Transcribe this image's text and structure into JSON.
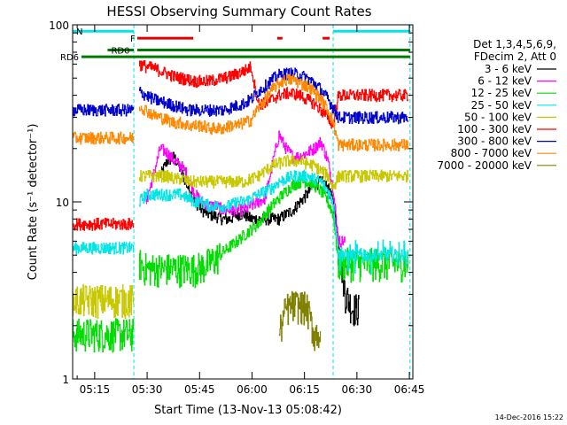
{
  "chart_data": {
    "type": "line",
    "title": "HESSI Observing Summary Count Rates",
    "xlabel": "Start Time (13-Nov-13 05:08:42)",
    "ylabel": "Count Rate (s⁻¹ detector⁻¹)",
    "ylog": true,
    "ylim": [
      1,
      100
    ],
    "xlim_minutes": [
      0,
      97.3
    ],
    "x_tick_labels": [
      "05:15",
      "05:30",
      "05:45",
      "06:00",
      "06:15",
      "06:30",
      "06:45"
    ],
    "x_tick_minutes": [
      6.3,
      21.3,
      36.3,
      51.3,
      66.3,
      81.3,
      96.3
    ],
    "y_tick_labels": [
      "1",
      "10",
      "100"
    ],
    "y_tick_values": [
      1,
      10,
      100
    ],
    "legend_header": [
      "Det 1,3,4,5,6,9,",
      "FDecim 2, Att 0"
    ],
    "legend_position": "right",
    "date_stamp": "14-Dec-2016 15:22",
    "flags": [
      {
        "label": "N",
        "color": "#00e6e6",
        "level": 92,
        "segments": [
          [
            0,
            17.5
          ],
          [
            74.5,
            96.5
          ]
        ]
      },
      {
        "label": "F",
        "color": "#e00000",
        "level": 84,
        "segments": [
          [
            18.5,
            34.5
          ],
          [
            58.5,
            60
          ],
          [
            71.5,
            73.5
          ]
        ]
      },
      {
        "label": "RD0",
        "color": "#007a00",
        "level": 72,
        "segments": [
          [
            10,
            17.5
          ],
          [
            18.5,
            96.5
          ]
        ]
      },
      {
        "label": "RD6",
        "color": "#007a00",
        "level": 66,
        "segments": [
          [
            2.5,
            96.5
          ]
        ]
      }
    ],
    "eclipse_times": [
      17.5,
      74.5,
      96.5
    ],
    "x_minutes": [
      0,
      2,
      4,
      6,
      8,
      10,
      12,
      14,
      16,
      17.5,
      19,
      21,
      23,
      25,
      27,
      29,
      31,
      33,
      35,
      37,
      39,
      41,
      43,
      45,
      47,
      49,
      51,
      53,
      55,
      57,
      59,
      61,
      63,
      65,
      67,
      69,
      71,
      73,
      74.5,
      76,
      78,
      80,
      82,
      84,
      86,
      88,
      90,
      92,
      94,
      96
    ],
    "series": [
      {
        "name": "3 - 6 keV",
        "color": "#000000",
        "values": [
          null,
          null,
          null,
          null,
          null,
          null,
          null,
          null,
          null,
          null,
          null,
          null,
          null,
          14,
          17,
          18,
          15,
          12,
          10,
          9,
          8.5,
          8.3,
          8,
          8,
          8.5,
          8.5,
          8,
          8,
          8,
          8,
          8,
          8.5,
          9,
          10,
          11,
          12.5,
          13,
          12,
          10,
          6,
          3,
          2.5,
          null,
          null,
          null,
          null,
          null,
          null,
          null,
          null
        ]
      },
      {
        "name": "6 - 12 keV",
        "color": "#ff00ff",
        "values": [
          null,
          null,
          null,
          null,
          null,
          null,
          null,
          null,
          null,
          null,
          null,
          10,
          14,
          20,
          19,
          17,
          16,
          14,
          11,
          10,
          9.5,
          9.5,
          9,
          9,
          9,
          9,
          9.5,
          10,
          10.5,
          16,
          24,
          20,
          18,
          18,
          19,
          20,
          22,
          17,
          12,
          6,
          null,
          null,
          null,
          null,
          null,
          null,
          null,
          null,
          null,
          null
        ]
      },
      {
        "name": "12 - 25 keV",
        "color": "#00dd00",
        "values": [
          1.8,
          1.8,
          1.8,
          1.8,
          1.8,
          1.8,
          1.8,
          1.8,
          1.8,
          null,
          4.5,
          4.2,
          4.2,
          4.2,
          4.2,
          4.2,
          4.2,
          4.2,
          4.2,
          4.3,
          4.5,
          4.8,
          5.2,
          5.6,
          6,
          6.5,
          7,
          7.5,
          8.5,
          9.5,
          10.5,
          11.5,
          12.5,
          13,
          13,
          12.5,
          11.5,
          10,
          8.5,
          4.5,
          4.5,
          4.5,
          4.5,
          4.5,
          4.5,
          4.5,
          4.5,
          4.5,
          4.5,
          4.5
        ]
      },
      {
        "name": "25 - 50 keV",
        "color": "#00e6e6",
        "values": [
          5.5,
          5.5,
          5.5,
          5.5,
          5.5,
          5.5,
          5.5,
          5.5,
          5.5,
          null,
          10,
          11,
          11,
          11,
          11,
          11,
          11,
          10.5,
          10,
          10,
          9.5,
          9.5,
          9.5,
          9.5,
          10,
          10,
          10.5,
          11,
          11.5,
          12,
          13,
          13.5,
          14,
          14,
          14,
          13.5,
          13,
          11.5,
          10,
          5,
          5,
          5,
          5,
          5,
          5,
          5,
          5,
          5,
          5,
          5
        ]
      },
      {
        "name": "50 - 100 keV",
        "color": "#c8c800",
        "values": [
          2.8,
          2.8,
          2.8,
          2.8,
          2.8,
          2.8,
          2.8,
          2.8,
          2.8,
          null,
          14,
          14,
          14,
          14,
          14,
          13.5,
          13.5,
          13,
          13,
          13,
          13,
          13,
          13,
          13,
          13,
          13,
          13.5,
          14,
          15,
          16,
          16.5,
          17,
          17,
          17,
          16.5,
          16,
          15,
          14,
          12,
          14,
          14,
          14,
          14,
          14,
          14,
          14,
          14,
          14,
          14,
          14
        ]
      },
      {
        "name": "100 - 300 keV",
        "color": "#ff0000",
        "values": [
          7.5,
          7.5,
          7.5,
          7.5,
          7.5,
          7.5,
          7.5,
          7.5,
          7.5,
          null,
          60,
          58,
          57,
          55,
          53,
          51,
          50,
          49,
          48,
          48,
          48,
          49,
          50,
          51,
          53,
          55,
          58,
          36,
          36,
          38,
          40,
          41,
          41,
          40,
          38,
          36,
          33,
          30,
          27,
          40,
          40,
          40,
          40,
          40,
          40,
          40,
          40,
          40,
          40,
          40
        ]
      },
      {
        "name": "300 - 800 keV",
        "color": "#0000cc",
        "values": [
          33,
          33,
          33,
          33,
          33,
          33,
          33,
          33,
          33,
          null,
          42,
          40,
          38,
          37,
          36,
          35,
          34,
          33,
          33,
          33,
          33,
          33,
          33,
          34,
          35,
          36,
          38,
          42,
          45,
          49,
          52,
          53,
          53,
          52,
          50,
          47,
          43,
          38,
          34,
          30,
          30,
          30,
          30,
          30,
          30,
          30,
          30,
          30,
          30,
          30
        ]
      },
      {
        "name": "800 - 7000 keV",
        "color": "#ff8800",
        "values": [
          23,
          23,
          23,
          23,
          23,
          23,
          23,
          23,
          23,
          null,
          35,
          33,
          31,
          30,
          29,
          28,
          28,
          27,
          27,
          27,
          26,
          26,
          26,
          27,
          27,
          28,
          29,
          34,
          38,
          43,
          47,
          49,
          49,
          47,
          45,
          42,
          38,
          33,
          28,
          21,
          21,
          21,
          21,
          21,
          21,
          21,
          21,
          21,
          21,
          21
        ]
      },
      {
        "name": "7000 - 20000 keV",
        "color": "#808000",
        "values": [
          null,
          null,
          null,
          null,
          null,
          null,
          null,
          null,
          null,
          null,
          null,
          null,
          null,
          null,
          null,
          null,
          null,
          null,
          null,
          null,
          null,
          null,
          null,
          null,
          null,
          null,
          null,
          null,
          null,
          null,
          1.8,
          2.5,
          2.6,
          2.6,
          2.5,
          1.8,
          null,
          null,
          null,
          null,
          null,
          null,
          null,
          null,
          null,
          null,
          null,
          null,
          null,
          null
        ]
      }
    ]
  }
}
